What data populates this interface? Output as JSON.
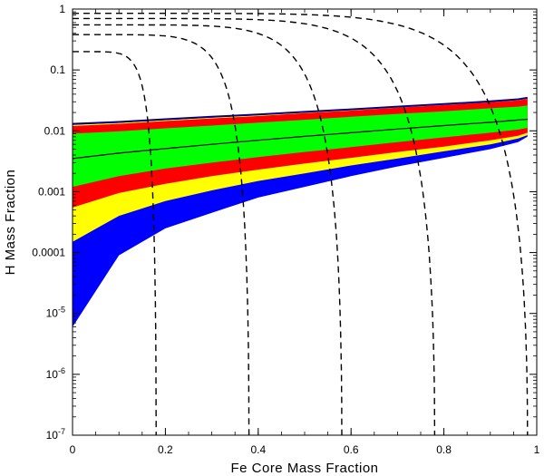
{
  "chart_data": {
    "type": "area",
    "xlabel": "Fe Core Mass Fraction",
    "ylabel": "H Mass Fraction",
    "xlim": [
      0,
      1
    ],
    "ylim": [
      1e-07,
      1
    ],
    "y_scale": "log",
    "x_ticks": [
      "0",
      "0.2",
      "0.4",
      "0.6",
      "0.8",
      "1"
    ],
    "y_ticks": [
      {
        "value": 1,
        "base": "1",
        "exp": ""
      },
      {
        "value": 0.1,
        "base": "0.1",
        "exp": ""
      },
      {
        "value": 0.01,
        "base": "0.01",
        "exp": ""
      },
      {
        "value": 0.001,
        "base": "0.001",
        "exp": ""
      },
      {
        "value": 0.0001,
        "base": "0.0001",
        "exp": ""
      },
      {
        "value": 1e-05,
        "base": "10",
        "exp": "-5"
      },
      {
        "value": 1e-06,
        "base": "10",
        "exp": "-6"
      },
      {
        "value": 1e-07,
        "base": "10",
        "exp": "-7"
      }
    ],
    "grid": false,
    "legend": "none",
    "bands": [
      {
        "color": "#0000ff",
        "lower": {
          "x": [
            0,
            0.1,
            0.2,
            0.3,
            0.4,
            0.5,
            0.6,
            0.7,
            0.8,
            0.9,
            0.96,
            0.98
          ],
          "y": [
            6e-06,
            9e-05,
            0.00025,
            0.00045,
            0.0008,
            0.0012,
            0.0018,
            0.0026,
            0.0036,
            0.005,
            0.0065,
            0.008
          ]
        },
        "upper": {
          "x": [
            0,
            0.1,
            0.2,
            0.3,
            0.4,
            0.5,
            0.6,
            0.7,
            0.8,
            0.9,
            0.96,
            0.98
          ],
          "y": [
            0.013,
            0.014,
            0.0155,
            0.017,
            0.0185,
            0.0205,
            0.0225,
            0.025,
            0.0275,
            0.0305,
            0.033,
            0.035
          ]
        }
      },
      {
        "color": "#ffff00",
        "lower": {
          "x": [
            0,
            0.1,
            0.2,
            0.3,
            0.4,
            0.5,
            0.6,
            0.7,
            0.8,
            0.9,
            0.96,
            0.98
          ],
          "y": [
            0.00015,
            0.0004,
            0.0007,
            0.00105,
            0.0015,
            0.002,
            0.0027,
            0.0035,
            0.0046,
            0.006,
            0.0075,
            0.0085
          ]
        },
        "upper": {
          "x": [
            0,
            0.1,
            0.2,
            0.3,
            0.4,
            0.5,
            0.6,
            0.7,
            0.8,
            0.9,
            0.96,
            0.98
          ],
          "y": [
            0.0125,
            0.0135,
            0.015,
            0.0165,
            0.018,
            0.02,
            0.022,
            0.0245,
            0.027,
            0.03,
            0.032,
            0.034
          ]
        }
      },
      {
        "color": "#ff0000",
        "lower": {
          "x": [
            0,
            0.1,
            0.2,
            0.3,
            0.4,
            0.5,
            0.6,
            0.7,
            0.8,
            0.9,
            0.96,
            0.98
          ],
          "y": [
            0.00055,
            0.00095,
            0.00135,
            0.0018,
            0.0023,
            0.0029,
            0.0036,
            0.0045,
            0.0055,
            0.007,
            0.0083,
            0.0093
          ]
        },
        "upper": {
          "x": [
            0,
            0.1,
            0.2,
            0.3,
            0.4,
            0.5,
            0.6,
            0.7,
            0.8,
            0.9,
            0.96,
            0.98
          ],
          "y": [
            0.012,
            0.013,
            0.0145,
            0.016,
            0.0175,
            0.0195,
            0.0215,
            0.024,
            0.0265,
            0.0295,
            0.0315,
            0.0335
          ]
        }
      },
      {
        "color": "#00ff00",
        "lower": {
          "x": [
            0,
            0.1,
            0.2,
            0.3,
            0.4,
            0.5,
            0.6,
            0.7,
            0.8,
            0.9,
            0.96,
            0.98
          ],
          "y": [
            0.0012,
            0.0018,
            0.0024,
            0.003,
            0.0037,
            0.0045,
            0.0054,
            0.0065,
            0.0078,
            0.0093,
            0.0105,
            0.0112
          ]
        },
        "upper": {
          "x": [
            0,
            0.1,
            0.2,
            0.3,
            0.4,
            0.5,
            0.6,
            0.7,
            0.8,
            0.9,
            0.96,
            0.98
          ],
          "y": [
            0.009,
            0.0098,
            0.011,
            0.0122,
            0.0136,
            0.0152,
            0.017,
            0.019,
            0.021,
            0.0235,
            0.025,
            0.026
          ]
        }
      }
    ],
    "solid_lines": [
      {
        "color": "#000000",
        "x": [
          0,
          0.1,
          0.2,
          0.3,
          0.4,
          0.5,
          0.6,
          0.7,
          0.8,
          0.9,
          0.98
        ],
        "y": [
          0.0035,
          0.0043,
          0.0051,
          0.006,
          0.007,
          0.0081,
          0.0093,
          0.0107,
          0.0122,
          0.0138,
          0.0155
        ]
      },
      {
        "color": "#00008b",
        "x": [
          0,
          0.1,
          0.2,
          0.3,
          0.4,
          0.5,
          0.6,
          0.7,
          0.8,
          0.9,
          0.96,
          0.98
        ],
        "y": [
          0.013,
          0.014,
          0.0155,
          0.017,
          0.0185,
          0.0205,
          0.0225,
          0.025,
          0.0275,
          0.0305,
          0.033,
          0.035
        ]
      }
    ],
    "dashed_curves": [
      {
        "x0": 0.18,
        "y0": 0.2
      },
      {
        "x0": 0.38,
        "y0": 0.38
      },
      {
        "x0": 0.58,
        "y0": 0.55
      },
      {
        "x0": 0.78,
        "y0": 0.7
      },
      {
        "x0": 0.98,
        "y0": 0.85
      }
    ]
  }
}
